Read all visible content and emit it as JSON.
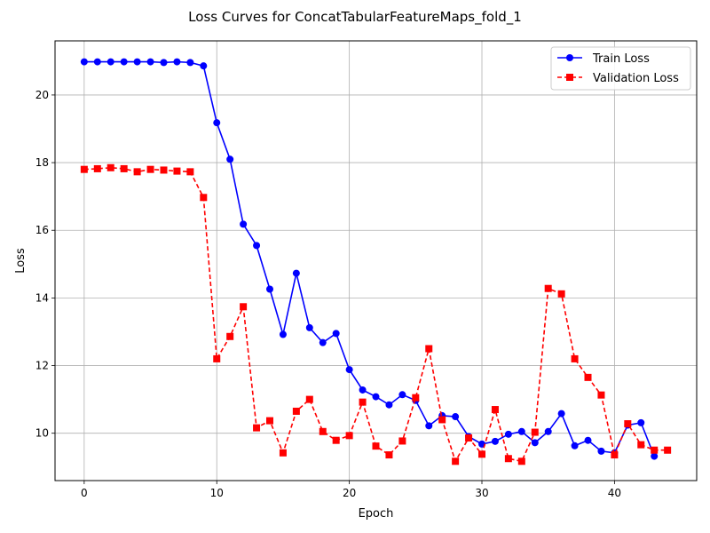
{
  "chart_data": {
    "type": "line",
    "title": "Loss Curves for ConcatTabularFeatureMaps_fold_1",
    "xlabel": "Epoch",
    "ylabel": "Loss",
    "xlim": [
      -2.2,
      46.2
    ],
    "ylim": [
      8.6,
      21.6
    ],
    "xticks": [
      0,
      10,
      20,
      30,
      40
    ],
    "yticks": [
      10,
      12,
      14,
      16,
      18,
      20
    ],
    "grid": true,
    "legend_position": "top-right",
    "series": [
      {
        "name": "Train Loss",
        "color": "#0000ff",
        "line_style": "solid",
        "marker": "circle",
        "x": [
          0,
          1,
          2,
          3,
          4,
          5,
          6,
          7,
          8,
          9,
          10,
          11,
          12,
          13,
          14,
          15,
          16,
          17,
          18,
          19,
          20,
          21,
          22,
          23,
          24,
          25,
          26,
          27,
          28,
          29,
          30,
          31,
          32,
          33,
          34,
          35,
          36,
          37,
          38,
          39,
          40,
          41,
          42,
          43
        ],
        "values": [
          20.98,
          20.98,
          20.98,
          20.98,
          20.98,
          20.98,
          20.96,
          20.98,
          20.96,
          20.86,
          19.18,
          18.1,
          16.18,
          15.55,
          14.26,
          12.92,
          14.73,
          13.12,
          12.68,
          12.95,
          11.88,
          11.28,
          11.08,
          10.84,
          11.14,
          10.97,
          10.22,
          10.52,
          10.49,
          9.9,
          9.68,
          9.76,
          9.97,
          10.05,
          9.72,
          10.05,
          10.58,
          9.63,
          9.79,
          9.47,
          9.42,
          10.24,
          10.31,
          9.32
        ]
      },
      {
        "name": "Validation Loss",
        "color": "#ff0000",
        "line_style": "dashed",
        "marker": "square",
        "x": [
          0,
          1,
          2,
          3,
          4,
          5,
          6,
          7,
          8,
          9,
          10,
          11,
          12,
          13,
          14,
          15,
          16,
          17,
          18,
          19,
          20,
          21,
          22,
          23,
          24,
          25,
          26,
          27,
          28,
          29,
          30,
          31,
          32,
          33,
          34,
          35,
          36,
          37,
          38,
          39,
          40,
          41,
          42,
          43,
          44
        ],
        "values": [
          17.8,
          17.82,
          17.85,
          17.82,
          17.73,
          17.8,
          17.78,
          17.75,
          17.73,
          16.97,
          12.2,
          12.86,
          13.74,
          10.16,
          10.37,
          9.42,
          10.65,
          11.0,
          10.05,
          9.79,
          9.93,
          10.92,
          9.62,
          9.36,
          9.77,
          11.05,
          12.5,
          10.4,
          9.17,
          9.86,
          9.38,
          10.7,
          9.25,
          9.17,
          10.03,
          14.28,
          14.12,
          12.2,
          11.65,
          11.13,
          9.36,
          10.28,
          9.66,
          9.5,
          9.5
        ]
      }
    ]
  }
}
